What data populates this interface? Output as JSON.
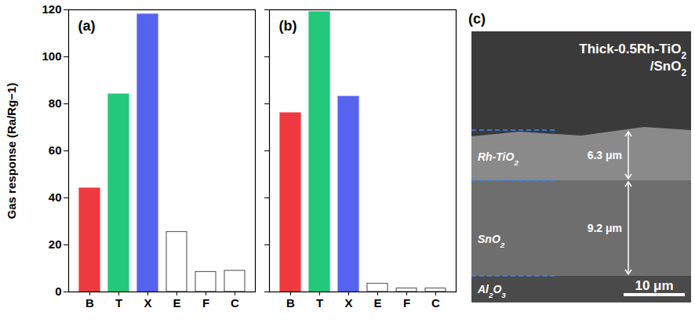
{
  "chart_data": [
    {
      "type": "bar",
      "title": "(a)",
      "ylabel": "Gas response (Ra/Rg−1)",
      "categories": [
        "B",
        "T",
        "X",
        "E",
        "F",
        "C"
      ],
      "values": [
        44,
        84,
        118,
        25.5,
        8.5,
        9
      ],
      "colors": [
        "#ee3a3e",
        "#22c97a",
        "#5563f0",
        "#ffffff",
        "#ffffff",
        "#ffffff"
      ],
      "ylim": [
        0,
        120
      ],
      "yticks": [
        0,
        20,
        40,
        60,
        80,
        100,
        120
      ]
    },
    {
      "type": "bar",
      "title": "(b)",
      "categories": [
        "B",
        "T",
        "X",
        "E",
        "F",
        "C"
      ],
      "values": [
        76,
        119,
        83,
        3.5,
        1.5,
        1.5
      ],
      "colors": [
        "#ee3a3e",
        "#22c97a",
        "#5563f0",
        "#ffffff",
        "#ffffff",
        "#ffffff"
      ],
      "ylim": [
        0,
        120
      ],
      "yticks": [
        0,
        20,
        40,
        60,
        80,
        100,
        120
      ],
      "tick_labels": "x"
    }
  ],
  "image": {
    "label": "(c)",
    "title": "Thick-0.5Rh-TiO2/SnO2",
    "layers": [
      {
        "name": "Rh-TiO2",
        "thickness": "6.3 μm"
      },
      {
        "name": "SnO2",
        "thickness": "9.2 μm"
      },
      {
        "name": "Al2O3"
      }
    ],
    "scale_bar": "10 μm"
  }
}
